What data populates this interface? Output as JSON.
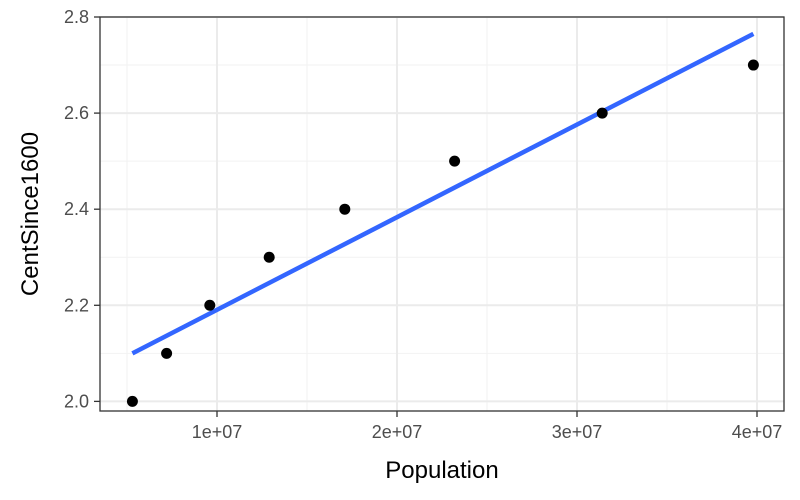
{
  "chart_data": {
    "type": "scatter",
    "title": "",
    "xlabel": "Population",
    "ylabel": "CentSince1600",
    "xlim": [
      3500000,
      41500000
    ],
    "ylim": [
      1.98,
      2.8
    ],
    "x_ticks": [
      10000000,
      20000000,
      30000000,
      40000000
    ],
    "x_tick_labels": [
      "1e+07",
      "2e+07",
      "3e+07",
      "4e+07"
    ],
    "x_minor_ticks": [
      5000000,
      15000000,
      25000000,
      35000000
    ],
    "y_ticks": [
      2.0,
      2.2,
      2.4,
      2.6,
      2.8
    ],
    "y_tick_labels": [
      "2.0",
      "2.2",
      "2.4",
      "2.6",
      "2.8"
    ],
    "y_minor_ticks": [
      2.1,
      2.3,
      2.5,
      2.7
    ],
    "grid": true,
    "series": [
      {
        "x": [
          5300000,
          7200000,
          9600000,
          12900000,
          17100000,
          23200000,
          31400000,
          39800000
        ],
        "y": [
          2.0,
          2.1,
          2.2,
          2.3,
          2.4,
          2.5,
          2.6,
          2.7
        ],
        "color": "#000000"
      }
    ],
    "fit_line": {
      "x": [
        5300000,
        39800000
      ],
      "y": [
        2.1,
        2.765
      ],
      "color": "#3366ff"
    },
    "colors": {
      "panel_border": "#333333",
      "grid_major": "#ebebeb",
      "grid_minor": "#f2f2f2",
      "tick": "#333333"
    }
  }
}
